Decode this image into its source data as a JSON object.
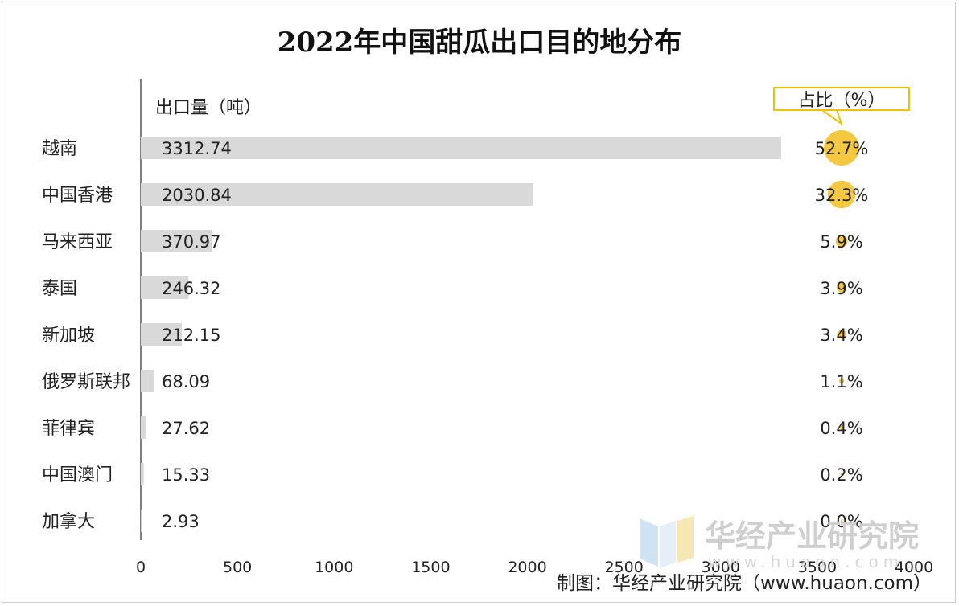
{
  "chart_data": {
    "type": "bar",
    "title": "2022年中国甜瓜出口目的地分布",
    "value_label": "出口量（吨）",
    "share_label": "占比（%）",
    "categories": [
      "越南",
      "中国香港",
      "马来西亚",
      "泰国",
      "新加坡",
      "俄罗斯联邦",
      "菲律宾",
      "中国澳门",
      "加拿大"
    ],
    "values": [
      3312.74,
      2030.84,
      370.97,
      246.32,
      212.15,
      68.09,
      27.62,
      15.33,
      2.93
    ],
    "value_labels": [
      "3312.74",
      "2030.84",
      "370.97",
      "246.32",
      "212.15",
      "68.09",
      "27.62",
      "15.33",
      "2.93"
    ],
    "shares": [
      52.7,
      32.3,
      5.9,
      3.9,
      3.4,
      1.1,
      0.4,
      0.2,
      0.0
    ],
    "share_labels": [
      "52.7%",
      "32.3%",
      "5.9%",
      "3.9%",
      "3.4%",
      "1.1%",
      "0.4%",
      "0.2%",
      "0.0%"
    ],
    "xlim": [
      0,
      4000
    ],
    "xticks": [
      "0",
      "500",
      "1000",
      "1500",
      "2000",
      "2500",
      "3000",
      "3500",
      "4000"
    ],
    "orientation": "horizontal",
    "grid": false,
    "colors": {
      "bar": "#d9d9d9",
      "bubble": "#f5c842",
      "callout_border": "#f2c200"
    }
  },
  "watermark": {
    "text": "华经产业研究院",
    "url": "www.huaon.com"
  },
  "source": "制图：华经产业研究院（www.huaon.com）"
}
